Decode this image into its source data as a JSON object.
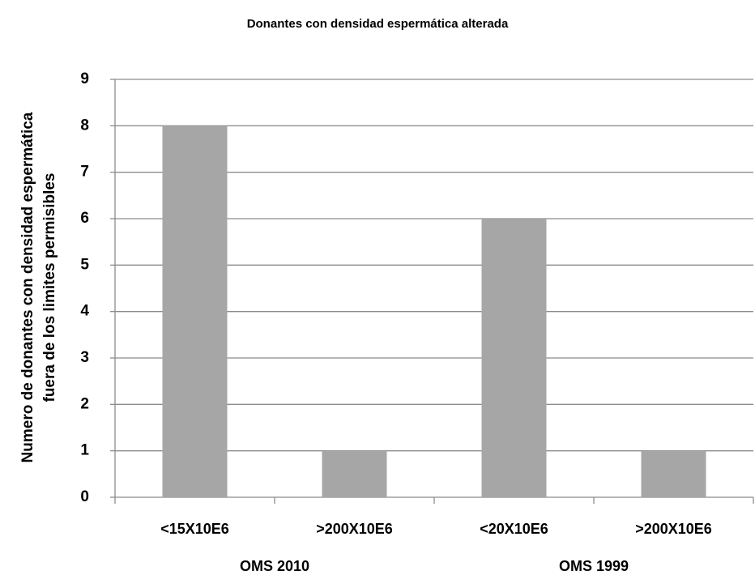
{
  "chart_data": {
    "type": "bar",
    "title": "Donantes con densidad espermática alterada",
    "y_label": [
      "Numero de donantes con densidad espermática",
      "fuera de los limites permisibles"
    ],
    "categories": [
      "<15X10E6",
      ">200X10E6",
      "<20X10E6",
      ">200X10E6"
    ],
    "group_labels": [
      "OMS 2010",
      "OMS 1999"
    ],
    "values": [
      8,
      1,
      6,
      1
    ],
    "color": "#a6a6a6",
    "ylim": [
      0,
      9
    ],
    "yticks": [
      0,
      1,
      2,
      3,
      4,
      5,
      6,
      7,
      8,
      9
    ],
    "grid": true
  }
}
